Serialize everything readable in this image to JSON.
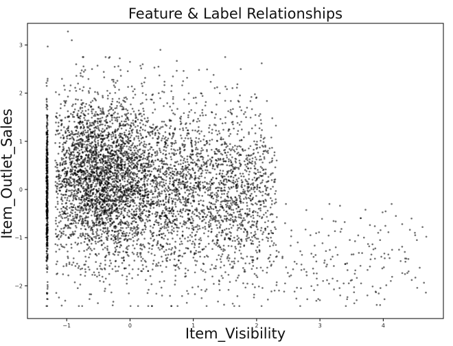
{
  "chart_data": {
    "type": "scatter",
    "title": "Feature & Label Relationships",
    "xlabel": "Item_Visibility",
    "ylabel": "Item_Outlet_Sales",
    "xlim": [
      -1.62,
      4.95
    ],
    "ylim": [
      -2.68,
      3.45
    ],
    "x_ticks": [
      -1,
      0,
      1,
      2,
      3,
      4
    ],
    "y_ticks": [
      -2,
      -1,
      0,
      1,
      2,
      3
    ],
    "grid": false,
    "point_color": "#000000",
    "point_opacity": 0.55,
    "clusters": [
      {
        "x_range": [
          -1.32,
          -1.3
        ],
        "y_center": -0.1,
        "y_spread": 0.85,
        "count": 420,
        "note_unit": "data"
      },
      {
        "x_center": -0.55,
        "x_spread": 0.45,
        "y_center": 0.25,
        "y_spread": 0.85,
        "count": 2600
      },
      {
        "x_center": 0.6,
        "x_spread": 0.75,
        "y_center": 0.0,
        "y_spread": 0.9,
        "count": 2200
      },
      {
        "x_center": 1.8,
        "x_spread": 0.45,
        "y_center": -0.2,
        "y_spread": 0.9,
        "count": 700
      },
      {
        "x_center": 3.4,
        "x_spread": 0.8,
        "y_center": -1.4,
        "y_spread": 0.55,
        "count": 140
      }
    ],
    "points": [
      [
        -0.98,
        3.28
      ],
      [
        -0.92,
        3.1
      ],
      [
        -1.3,
        2.97
      ],
      [
        0.48,
        2.9
      ],
      [
        -0.32,
        2.75
      ],
      [
        0.2,
        2.6
      ],
      [
        2.08,
        2.62
      ],
      [
        -0.85,
        2.6
      ],
      [
        0.45,
        2.55
      ],
      [
        -0.6,
        2.5
      ],
      [
        0.0,
        2.65
      ],
      [
        -0.15,
        2.48
      ],
      [
        1.32,
        2.38
      ],
      [
        1.75,
        2.5
      ],
      [
        3.15,
        -0.3
      ],
      [
        3.72,
        -0.42
      ],
      [
        4.2,
        -0.55
      ],
      [
        4.3,
        -0.72
      ],
      [
        4.62,
        -0.78
      ],
      [
        4.68,
        -0.98
      ],
      [
        4.5,
        -0.9
      ],
      [
        3.92,
        -0.9
      ],
      [
        3.95,
        -1.05
      ],
      [
        2.45,
        -0.7
      ],
      [
        2.55,
        -0.85
      ],
      [
        2.85,
        -0.95
      ],
      [
        3.25,
        -1.2
      ],
      [
        3.4,
        -1.55
      ],
      [
        3.55,
        -1.75
      ],
      [
        4.08,
        -1.35
      ],
      [
        4.35,
        -1.5
      ],
      [
        4.12,
        -1.9
      ],
      [
        4.45,
        -1.88
      ],
      [
        3.88,
        -2.12
      ],
      [
        3.75,
        -2.2
      ],
      [
        3.95,
        -2.4
      ],
      [
        3.32,
        -2.2
      ],
      [
        3.58,
        -2.3
      ],
      [
        2.6,
        -2.12
      ],
      [
        2.8,
        -2.28
      ],
      [
        3.05,
        -1.9
      ],
      [
        2.95,
        -1.85
      ],
      [
        4.02,
        -2.28
      ],
      [
        3.65,
        -1.95
      ],
      [
        2.35,
        -1.3
      ],
      [
        2.6,
        -1.5
      ],
      [
        2.9,
        -1.4
      ],
      [
        3.1,
        -1.6
      ],
      [
        3.2,
        -1.85
      ],
      [
        3.5,
        -1.35
      ],
      [
        3.8,
        -1.45
      ],
      [
        4.25,
        -1.25
      ],
      [
        4.4,
        -1.7
      ],
      [
        2.45,
        -1.95
      ],
      [
        2.7,
        -2.05
      ],
      [
        3.0,
        -2.3
      ]
    ]
  }
}
